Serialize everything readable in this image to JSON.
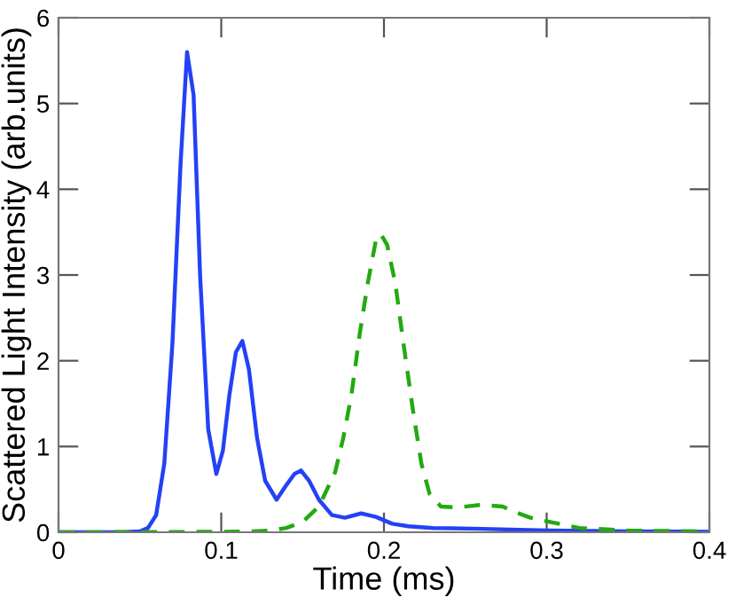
{
  "chart_data": {
    "type": "line",
    "xlabel": "Time (ms)",
    "ylabel": "Scattered Light Intensity (arb.units)",
    "xlim": [
      0,
      0.4
    ],
    "xticks": [
      0,
      0.1,
      0.2,
      0.3,
      0.4
    ],
    "ylim": [
      0,
      6
    ],
    "yticks": [
      0,
      1,
      2,
      3,
      4,
      5,
      6
    ],
    "grid": false,
    "legend": false,
    "series": [
      {
        "color": "#2342f5",
        "line_style": "solid",
        "x": [
          0,
          0.04,
          0.05,
          0.055,
          0.06,
          0.065,
          0.07,
          0.075,
          0.079,
          0.083,
          0.087,
          0.092,
          0.097,
          0.101,
          0.105,
          0.109,
          0.113,
          0.117,
          0.122,
          0.127,
          0.134,
          0.14,
          0.145,
          0.149,
          0.154,
          0.16,
          0.168,
          0.176,
          0.186,
          0.195,
          0.205,
          0.215,
          0.23,
          0.26,
          0.3,
          0.35,
          0.4
        ],
        "values": [
          0,
          0,
          0.01,
          0.05,
          0.2,
          0.8,
          2.2,
          4.3,
          5.6,
          5.1,
          3.0,
          1.2,
          0.68,
          0.95,
          1.6,
          2.1,
          2.23,
          1.9,
          1.1,
          0.6,
          0.38,
          0.55,
          0.68,
          0.72,
          0.6,
          0.38,
          0.2,
          0.17,
          0.22,
          0.18,
          0.1,
          0.07,
          0.05,
          0.04,
          0.02,
          0.01,
          0.005
        ]
      },
      {
        "color": "#22aa11",
        "line_style": "dashed",
        "x": [
          0,
          0.1,
          0.12,
          0.13,
          0.14,
          0.15,
          0.16,
          0.17,
          0.175,
          0.18,
          0.185,
          0.19,
          0.195,
          0.198,
          0.202,
          0.207,
          0.212,
          0.218,
          0.223,
          0.228,
          0.235,
          0.245,
          0.26,
          0.273,
          0.28,
          0.29,
          0.302,
          0.32,
          0.35,
          0.4
        ],
        "values": [
          0,
          0.005,
          0.01,
          0.02,
          0.05,
          0.12,
          0.3,
          0.7,
          1.1,
          1.6,
          2.3,
          2.9,
          3.4,
          3.48,
          3.35,
          2.9,
          2.2,
          1.4,
          0.8,
          0.45,
          0.3,
          0.29,
          0.32,
          0.3,
          0.24,
          0.17,
          0.12,
          0.05,
          0.02,
          0.01
        ]
      }
    ]
  }
}
